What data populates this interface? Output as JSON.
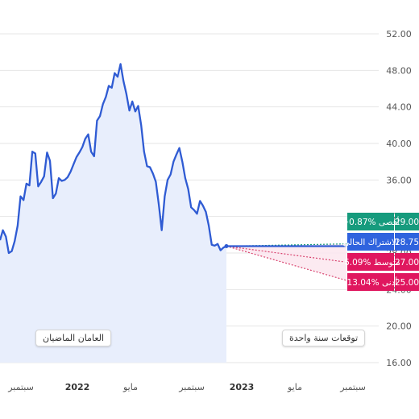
{
  "chart_data": {
    "type": "line",
    "history": {
      "label": "العامان الماضيان",
      "values": [
        29.4,
        30.5,
        29.8,
        28.0,
        28.2,
        29.3,
        31.0,
        34.2,
        33.8,
        35.6,
        35.4,
        39.1,
        38.9,
        35.3,
        35.8,
        36.4,
        39.0,
        38.1,
        34.0,
        34.5,
        36.2,
        35.9,
        36.0,
        36.3,
        36.9,
        37.7,
        38.5,
        39.0,
        39.6,
        40.5,
        41.0,
        39.1,
        38.6,
        42.5,
        43.0,
        44.3,
        45.1,
        46.3,
        46.1,
        47.7,
        47.3,
        48.7,
        46.8,
        45.4,
        43.6,
        44.6,
        43.5,
        44.1,
        42.0,
        39.1,
        37.5,
        37.4,
        36.7,
        35.8,
        33.3,
        30.5,
        34.2,
        36.0,
        36.6,
        38.0,
        38.8,
        39.5,
        38.0,
        36.2,
        35.0,
        33.0,
        32.7,
        32.3,
        33.7,
        33.2,
        32.5,
        31.0,
        28.9,
        28.8,
        29.0,
        28.3,
        28.6,
        28.75
      ]
    },
    "forecast": {
      "label": "توقعات سنة واحدة",
      "high": 29.0,
      "current": 28.75,
      "average": 27.0,
      "low": 25.0
    },
    "badges": [
      {
        "key": "high",
        "text": "+0.87% أقصى",
        "value": "29.00",
        "color": "#169b7d"
      },
      {
        "key": "current",
        "text": "الاشتراك الحالي",
        "value": "28.75",
        "color": "#2f63de"
      },
      {
        "key": "average",
        "text": "-6.09% متوسط",
        "value": "27.00",
        "color": "#e0175f"
      },
      {
        "key": "low",
        "text": "-13.04% أدنى",
        "value": "25.00",
        "color": "#e0175f"
      }
    ],
    "y_ticks": [
      "52.00",
      "48.00",
      "44.00",
      "40.00",
      "36.00",
      "32.00",
      "28.00",
      "24.00",
      "20.00",
      "16.00"
    ],
    "y_tick_values": [
      52,
      48,
      44,
      40,
      36,
      32,
      28,
      24,
      20,
      16
    ],
    "ylim": [
      16,
      52
    ],
    "x_ticks": [
      {
        "label": "سبتمبر",
        "year": false
      },
      {
        "label": "2022",
        "year": true
      },
      {
        "label": "مايو",
        "year": false
      },
      {
        "label": "سبتمبر",
        "year": false
      },
      {
        "label": "2023",
        "year": true
      },
      {
        "label": "مايو",
        "year": false
      },
      {
        "label": "سبتمبر",
        "year": false
      }
    ],
    "colors": {
      "line": "#2f5bd3",
      "area": "#e8eefc",
      "forecast_area": "#fbe6ee",
      "forecast_line": "#d8436f",
      "gridline": "#e6e6e6"
    }
  }
}
